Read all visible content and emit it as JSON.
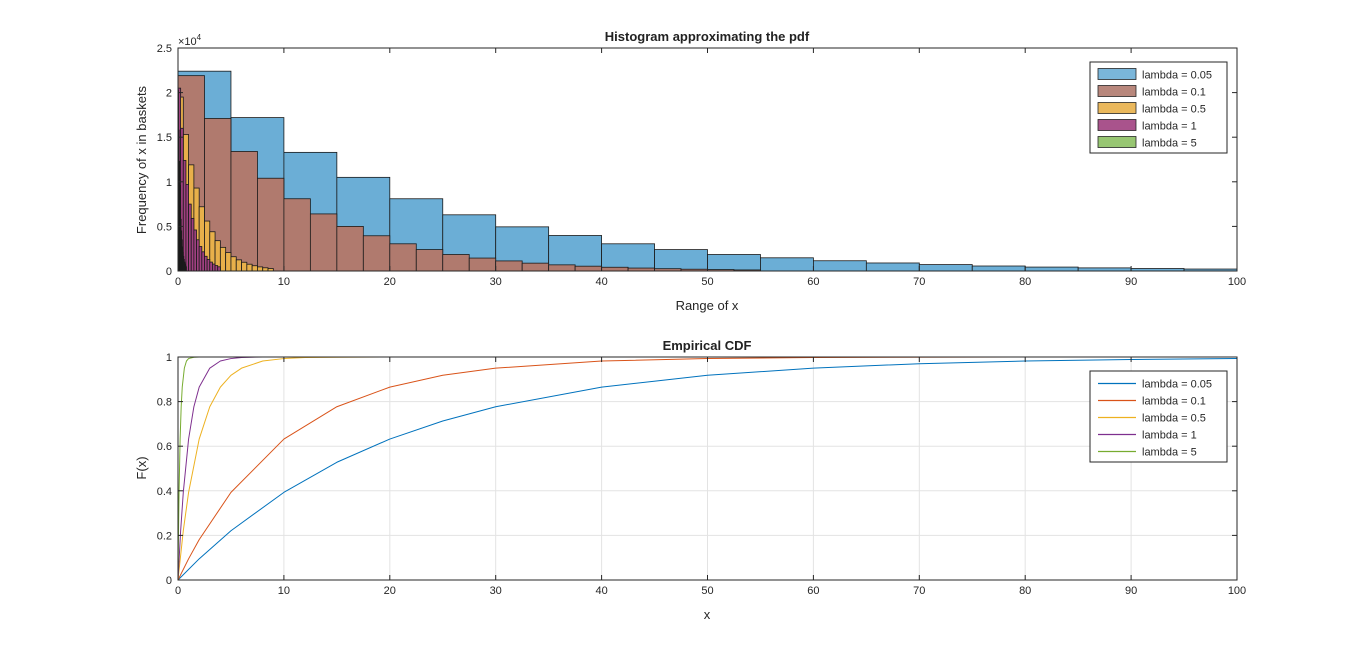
{
  "chart_data": [
    {
      "type": "histogram",
      "title": "Histogram approximating the pdf",
      "xlabel": "Range of x",
      "ylabel": "Frequency of x in baskets",
      "y_exponent_label": "×10",
      "y_exponent_power": "4",
      "xlim": [
        0,
        100
      ],
      "ylim": [
        0,
        25000
      ],
      "x_ticks": [
        0,
        10,
        20,
        30,
        40,
        50,
        60,
        70,
        80,
        90,
        100
      ],
      "x_tick_labels": [
        "0",
        "10",
        "20",
        "30",
        "40",
        "50",
        "60",
        "70",
        "80",
        "90",
        "100"
      ],
      "y_ticks": [
        0,
        5000,
        10000,
        15000,
        20000,
        25000
      ],
      "y_tick_labels": [
        "0",
        "0.5",
        "1",
        "1.5",
        "2",
        "2.5"
      ],
      "grid": false,
      "legend_position": "top-right",
      "series": [
        {
          "name": "lambda = 0.05",
          "color": "#6baed6",
          "bin_edges": [
            0,
            5,
            10,
            15,
            20,
            25,
            30,
            35,
            40,
            45,
            50,
            55,
            60,
            65,
            70,
            75,
            80,
            85,
            90,
            95,
            100
          ],
          "counts": [
            22400,
            17200,
            13300,
            10500,
            8100,
            6300,
            4950,
            3980,
            3050,
            2400,
            1850,
            1480,
            1150,
            900,
            720,
            560,
            440,
            350,
            280,
            220
          ]
        },
        {
          "name": "lambda = 0.1",
          "color": "#b07a6e",
          "bin_edges": [
            0,
            2.5,
            5,
            7.5,
            10,
            12.5,
            15,
            17.5,
            20,
            22.5,
            25,
            27.5,
            30,
            32.5,
            35,
            37.5,
            40,
            42.5,
            45,
            47.5,
            50,
            52.5,
            55
          ],
          "counts": [
            21900,
            17100,
            13400,
            10400,
            8100,
            6400,
            5000,
            3950,
            3050,
            2400,
            1850,
            1450,
            1130,
            880,
            690,
            540,
            420,
            330,
            260,
            200,
            160,
            120
          ]
        },
        {
          "name": "lambda = 0.5",
          "color": "#e8b04a",
          "bin_edges": [
            0,
            0.5,
            1,
            1.5,
            2,
            2.5,
            3,
            3.5,
            4,
            4.5,
            5,
            5.5,
            6,
            6.5,
            7,
            7.5,
            8,
            8.5,
            9
          ],
          "counts": [
            19500,
            15300,
            11900,
            9300,
            7200,
            5600,
            4400,
            3400,
            2650,
            2070,
            1600,
            1250,
            980,
            760,
            590,
            460,
            360,
            280
          ]
        },
        {
          "name": "lambda = 1",
          "color": "#a04080",
          "bin_edges": [
            0,
            0.25,
            0.5,
            0.75,
            1,
            1.25,
            1.5,
            1.75,
            2,
            2.25,
            2.5,
            2.75,
            3,
            3.25,
            3.5,
            3.75,
            4
          ],
          "counts": [
            20500,
            16000,
            12400,
            9700,
            7500,
            5900,
            4600,
            3500,
            2750,
            2150,
            1650,
            1300,
            1000,
            780,
            610,
            470
          ]
        },
        {
          "name": "lambda = 5",
          "color": "#8cc063",
          "bin_edges": [
            0,
            0.05,
            0.1,
            0.15,
            0.2,
            0.25,
            0.3,
            0.35,
            0.4,
            0.45,
            0.5,
            0.55,
            0.6,
            0.65,
            0.7,
            0.75,
            0.8
          ],
          "counts": [
            20300,
            15800,
            12300,
            9600,
            7400,
            5800,
            4500,
            3500,
            2700,
            2100,
            1650,
            1300,
            1000,
            780,
            600,
            470
          ]
        }
      ]
    },
    {
      "type": "line",
      "title": "Empirical CDF",
      "xlabel": "x",
      "ylabel": "F(x)",
      "xlim": [
        0,
        100
      ],
      "ylim": [
        0,
        1
      ],
      "x_ticks": [
        0,
        10,
        20,
        30,
        40,
        50,
        60,
        70,
        80,
        90,
        100
      ],
      "x_tick_labels": [
        "0",
        "10",
        "20",
        "30",
        "40",
        "50",
        "60",
        "70",
        "80",
        "90",
        "100"
      ],
      "y_ticks": [
        0,
        0.2,
        0.4,
        0.6,
        0.8,
        1
      ],
      "y_tick_labels": [
        "0",
        "0.2",
        "0.4",
        "0.6",
        "0.8",
        "1"
      ],
      "grid": true,
      "legend_position": "top-right",
      "series": [
        {
          "name": "lambda = 0.05",
          "color": "#0072bd",
          "x": [
            0,
            2,
            5,
            10,
            15,
            20,
            25,
            30,
            40,
            50,
            60,
            70,
            80,
            90,
            100
          ],
          "y": [
            0,
            0.095,
            0.221,
            0.393,
            0.528,
            0.632,
            0.713,
            0.777,
            0.865,
            0.918,
            0.95,
            0.97,
            0.982,
            0.989,
            0.993
          ]
        },
        {
          "name": "lambda = 0.1",
          "color": "#d95319",
          "x": [
            0,
            1,
            2,
            5,
            10,
            15,
            20,
            25,
            30,
            40,
            50,
            60,
            80,
            100
          ],
          "y": [
            0,
            0.095,
            0.181,
            0.393,
            0.632,
            0.777,
            0.865,
            0.918,
            0.95,
            0.982,
            0.993,
            0.998,
            1,
            1
          ]
        },
        {
          "name": "lambda = 0.5",
          "color": "#edb120",
          "x": [
            0,
            0.5,
            1,
            2,
            3,
            4,
            5,
            6,
            8,
            10,
            12,
            15,
            20,
            100
          ],
          "y": [
            0,
            0.221,
            0.393,
            0.632,
            0.777,
            0.865,
            0.918,
            0.95,
            0.982,
            0.993,
            0.998,
            0.999,
            1,
            1
          ]
        },
        {
          "name": "lambda = 1",
          "color": "#7e2f8e",
          "x": [
            0,
            0.25,
            0.5,
            1,
            1.5,
            2,
            3,
            4,
            5,
            6,
            8,
            100
          ],
          "y": [
            0,
            0.221,
            0.393,
            0.632,
            0.777,
            0.865,
            0.95,
            0.982,
            0.993,
            0.998,
            1,
            1
          ]
        },
        {
          "name": "lambda = 5",
          "color": "#77ac30",
          "x": [
            0,
            0.05,
            0.1,
            0.2,
            0.3,
            0.4,
            0.6,
            0.8,
            1,
            1.5,
            2,
            100
          ],
          "y": [
            0,
            0.221,
            0.393,
            0.632,
            0.777,
            0.865,
            0.95,
            0.982,
            0.993,
            0.999,
            1,
            1
          ]
        }
      ]
    }
  ]
}
